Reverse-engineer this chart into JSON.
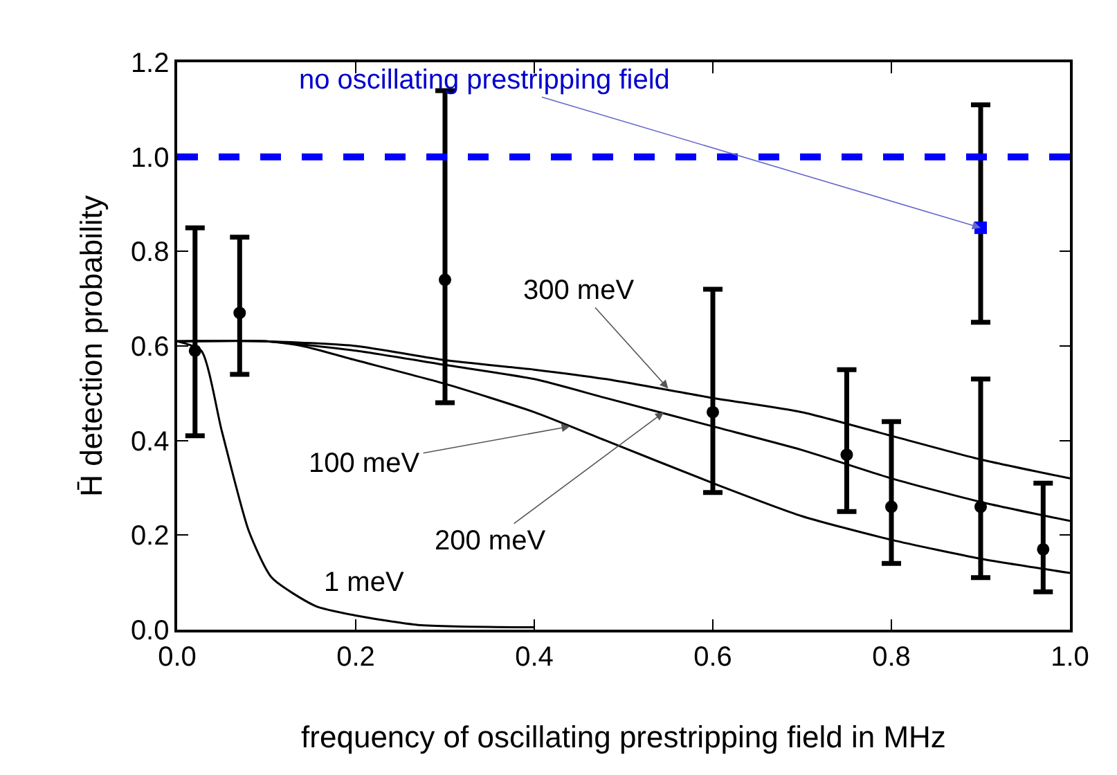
{
  "chart_data": {
    "type": "scatter",
    "xlabel": "frequency of oscillating prestripping field in MHz",
    "ylabel": "H̄ detection probability",
    "xlim": [
      0,
      1
    ],
    "ylim": [
      0,
      1.2
    ],
    "xticks": [
      {
        "value": 0,
        "label": "0.0"
      },
      {
        "value": 0.2,
        "label": "0.2"
      },
      {
        "value": 0.4,
        "label": "0.4"
      },
      {
        "value": 0.6,
        "label": "0.6"
      },
      {
        "value": 0.8,
        "label": "0.8"
      },
      {
        "value": 1,
        "label": "1.0"
      }
    ],
    "yticks": [
      {
        "value": 0,
        "label": "0.0"
      },
      {
        "value": 0.2,
        "label": "0.2"
      },
      {
        "value": 0.4,
        "label": "0.4"
      },
      {
        "value": 0.6,
        "label": "0.6"
      },
      {
        "value": 0.8,
        "label": "0.8"
      },
      {
        "value": 1,
        "label": "1.0"
      },
      {
        "value": 1.2,
        "label": "1.2"
      }
    ],
    "grid": false,
    "series": [
      {
        "type": "line",
        "color": "#000000",
        "marker": "none",
        "x": [
          0,
          0.1,
          0.2,
          0.3,
          0.4,
          0.48,
          0.6,
          0.7,
          0.8,
          0.9,
          1.0
        ],
        "values": [
          0.61,
          0.61,
          0.6,
          0.57,
          0.55,
          0.53,
          0.49,
          0.46,
          0.41,
          0.36,
          0.32
        ]
      },
      {
        "type": "line",
        "color": "#000000",
        "marker": "none",
        "x": [
          0,
          0.1,
          0.2,
          0.3,
          0.4,
          0.48,
          0.6,
          0.7,
          0.8,
          0.9,
          1.0
        ],
        "values": [
          0.61,
          0.61,
          0.59,
          0.56,
          0.53,
          0.49,
          0.43,
          0.38,
          0.32,
          0.27,
          0.23
        ]
      },
      {
        "type": "line",
        "color": "#000000",
        "marker": "none",
        "x": [
          0,
          0.1,
          0.14,
          0.2,
          0.3,
          0.4,
          0.48,
          0.6,
          0.7,
          0.8,
          0.9,
          1.0
        ],
        "values": [
          0.61,
          0.61,
          0.6,
          0.57,
          0.52,
          0.46,
          0.4,
          0.31,
          0.24,
          0.19,
          0.15,
          0.12
        ]
      },
      {
        "type": "line",
        "color": "#000000",
        "marker": "none",
        "x": [
          0,
          0.027,
          0.05,
          0.08,
          0.106,
          0.155,
          0.2,
          0.27,
          0.4
        ],
        "values": [
          0.61,
          0.59,
          0.42,
          0.21,
          0.11,
          0.05,
          0.03,
          0.01,
          0.005
        ]
      },
      {
        "color": "#000000",
        "marker": "circle",
        "x": [
          0.02,
          0.07,
          0.3,
          0.6,
          0.75,
          0.8,
          0.9,
          0.97
        ],
        "values": [
          0.59,
          0.67,
          0.74,
          0.46,
          0.37,
          0.26,
          0.26,
          0.17
        ],
        "errors": [
          [
            0.41,
            0.85
          ],
          [
            0.54,
            0.83
          ],
          [
            0.48,
            1.14
          ],
          [
            0.29,
            0.72
          ],
          [
            0.25,
            0.55
          ],
          [
            0.14,
            0.44
          ],
          [
            0.11,
            0.53
          ],
          [
            0.08,
            0.31
          ]
        ]
      },
      {
        "color": "#0000ff",
        "marker": "square",
        "x": [
          0.9
        ],
        "values": [
          0.85
        ],
        "errors": [
          [
            0.65,
            1.11
          ]
        ]
      }
    ],
    "ref_lines": [
      {
        "axis": "y",
        "value": 1.0,
        "color": "#0000ff",
        "line_style": "dashed"
      }
    ],
    "annotations": [
      {
        "text": "no oscillating prestripping field",
        "x": 0.9,
        "y": 0.85
      },
      {
        "text": "300 meV",
        "x": 0.55,
        "y": 0.51
      },
      {
        "text": "100 meV",
        "x": 0.44,
        "y": 0.43
      },
      {
        "text": "200 meV",
        "x": 0.545,
        "y": 0.46
      },
      {
        "text": "1 meV",
        "x": 0.155,
        "y": 0.05
      }
    ]
  }
}
